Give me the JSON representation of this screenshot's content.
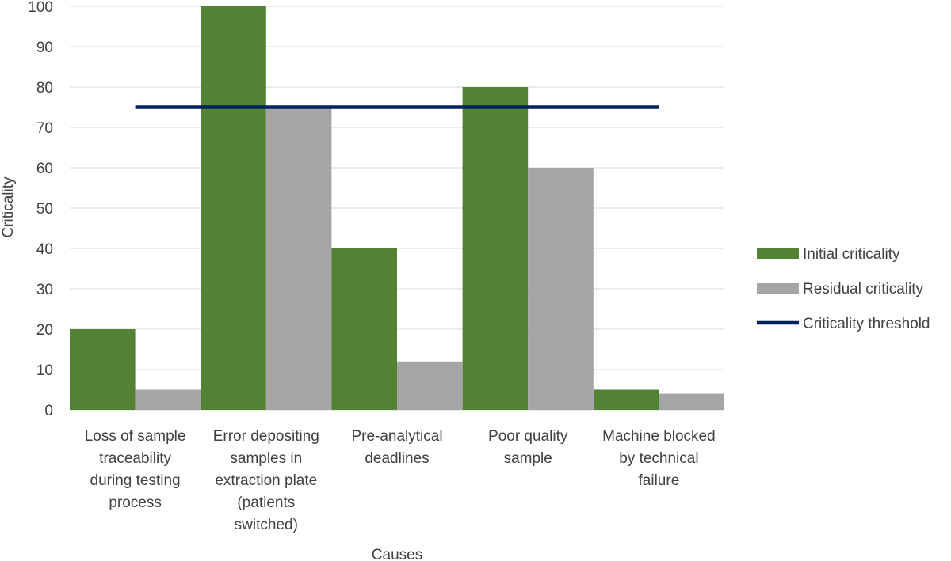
{
  "chart_data": {
    "type": "bar",
    "title": "",
    "xlabel": "Causes",
    "ylabel": "Criticality",
    "ylim": [
      0,
      100
    ],
    "yticks": [
      0,
      10,
      20,
      30,
      40,
      50,
      60,
      70,
      80,
      90,
      100
    ],
    "grid": true,
    "legend_position": "right",
    "categories": [
      [
        "Loss of sample",
        "traceability",
        "during testing",
        "process"
      ],
      [
        "Error depositing",
        "samples in",
        "extraction plate",
        "(patients",
        "switched)"
      ],
      [
        "Pre-analytical",
        "deadlines"
      ],
      [
        "Poor quality",
        "sample"
      ],
      [
        "Machine blocked",
        "by technical",
        "failure"
      ]
    ],
    "series": [
      {
        "name": "Initial criticality",
        "color": "#548235",
        "values": [
          20,
          100,
          40,
          80,
          5
        ]
      },
      {
        "name": "Residual criticality",
        "color": "#a5a5a5",
        "values": [
          5,
          75,
          12,
          60,
          4
        ]
      }
    ],
    "threshold": {
      "name": "Criticality threshold",
      "color": "#002060",
      "value": 75
    }
  }
}
